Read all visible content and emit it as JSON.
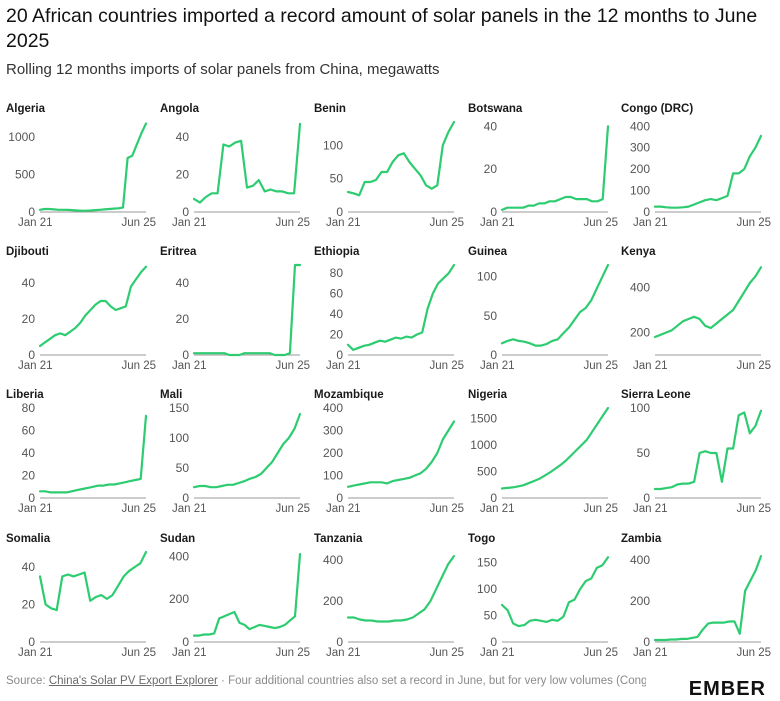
{
  "header": {
    "title": "20 African countries imported a record amount of solar panels in the 12 months to June 2025",
    "subtitle": "Rolling 12 months imports of solar panels from China, megawatts"
  },
  "footer": {
    "source_prefix": "Source: ",
    "source_link": "China's Solar PV Export Explorer",
    "note": " · Four additional countries also set a record in June, but for very low volumes (Congo, Equatorial Guinea, Eswatini, Saint Helena)"
  },
  "logo": "EMBER",
  "colors": {
    "line": "#2ecc71",
    "axis": "#999999",
    "text": "#333333"
  },
  "chart_data": [
    {
      "type": "line",
      "title": "Algeria",
      "xlabels": [
        "Jan 21",
        "Jun 25"
      ],
      "yticks": [
        0,
        500,
        1000
      ],
      "ylim": [
        0,
        1200
      ],
      "values": [
        30,
        40,
        40,
        35,
        30,
        30,
        28,
        25,
        20,
        18,
        18,
        20,
        25,
        30,
        35,
        40,
        45,
        50,
        60,
        720,
        750,
        900,
        1050,
        1180
      ]
    },
    {
      "type": "line",
      "title": "Angola",
      "xlabels": [
        "Jan 21",
        "Jun 25"
      ],
      "yticks": [
        0,
        20,
        40
      ],
      "ylim": [
        0,
        48
      ],
      "values": [
        7,
        5,
        8,
        10,
        10,
        36,
        35,
        37,
        38,
        13,
        14,
        17,
        11,
        12,
        11,
        11,
        10,
        10,
        47
      ]
    },
    {
      "type": "line",
      "title": "Benin",
      "xlabels": [
        "Jan 21",
        "Jun 25"
      ],
      "yticks": [
        0,
        50,
        100
      ],
      "ylim": [
        0,
        135
      ],
      "values": [
        30,
        28,
        25,
        45,
        45,
        48,
        60,
        60,
        75,
        85,
        88,
        75,
        65,
        55,
        40,
        35,
        40,
        100,
        120,
        135
      ]
    },
    {
      "type": "line",
      "title": "Botswana",
      "xlabels": [
        "Jan 21",
        "Jun 25"
      ],
      "yticks": [
        0,
        20,
        40
      ],
      "ylim": [
        0,
        42
      ],
      "values": [
        1,
        2,
        2,
        2,
        2,
        3,
        3,
        4,
        4,
        5,
        5,
        6,
        7,
        7,
        6,
        6,
        6,
        5,
        5,
        6,
        40
      ]
    },
    {
      "type": "line",
      "title": "Congo (DRC)",
      "xlabels": [
        "Jan 21",
        "Jun 25"
      ],
      "yticks": [
        0,
        100,
        200,
        300,
        400
      ],
      "ylim": [
        0,
        420
      ],
      "values": [
        25,
        25,
        22,
        20,
        20,
        22,
        25,
        35,
        45,
        55,
        60,
        55,
        65,
        75,
        180,
        180,
        200,
        260,
        300,
        355
      ]
    },
    {
      "type": "line",
      "title": "Djibouti",
      "xlabels": [
        "Jan 21",
        "Jun 25"
      ],
      "yticks": [
        0,
        20,
        40
      ],
      "ylim": [
        0,
        50
      ],
      "values": [
        5,
        7,
        9,
        11,
        12,
        11,
        13,
        15,
        18,
        22,
        25,
        28,
        30,
        30,
        27,
        25,
        26,
        27,
        38,
        42,
        46,
        49
      ]
    },
    {
      "type": "line",
      "title": "Eritrea",
      "xlabels": [
        "Jan 21",
        "Jun 25"
      ],
      "yticks": [
        0,
        20,
        40
      ],
      "ylim": [
        0,
        50
      ],
      "values": [
        1,
        1,
        1,
        1,
        1,
        1,
        1,
        0,
        0,
        0,
        1,
        1,
        1,
        1,
        1,
        1,
        0,
        0,
        0,
        1,
        50,
        50
      ]
    },
    {
      "type": "line",
      "title": "Ethiopia",
      "xlabels": [
        "Jan 21",
        "Jun 25"
      ],
      "yticks": [
        0,
        20,
        40,
        60,
        80
      ],
      "ylim": [
        0,
        88
      ],
      "values": [
        10,
        5,
        7,
        9,
        10,
        12,
        14,
        13,
        15,
        17,
        16,
        18,
        17,
        20,
        22,
        45,
        60,
        70,
        75,
        80,
        88
      ]
    },
    {
      "type": "line",
      "title": "Guinea",
      "xlabels": [
        "Jan 21",
        "Jun 25"
      ],
      "yticks": [
        0,
        50,
        100
      ],
      "ylim": [
        0,
        115
      ],
      "values": [
        15,
        18,
        20,
        18,
        17,
        15,
        12,
        12,
        14,
        18,
        20,
        28,
        35,
        45,
        55,
        60,
        70,
        85,
        100,
        115
      ]
    },
    {
      "type": "line",
      "title": "Kenya",
      "xlabels": [
        "Jan 21",
        "Jun 25"
      ],
      "yticks": [
        200,
        400
      ],
      "ylim": [
        100,
        500
      ],
      "values": [
        180,
        190,
        200,
        210,
        230,
        250,
        260,
        270,
        260,
        230,
        220,
        240,
        260,
        280,
        300,
        340,
        380,
        420,
        450,
        490
      ]
    },
    {
      "type": "line",
      "title": "Liberia",
      "xlabels": [
        "Jan 21",
        "Jun 25"
      ],
      "yticks": [
        0,
        20,
        40,
        60,
        80
      ],
      "ylim": [
        0,
        80
      ],
      "values": [
        6,
        6,
        5,
        5,
        5,
        5,
        6,
        7,
        8,
        9,
        10,
        11,
        11,
        12,
        12,
        13,
        14,
        15,
        16,
        17,
        73
      ]
    },
    {
      "type": "line",
      "title": "Mali",
      "xlabels": [
        "Jan 21",
        "Jun 25"
      ],
      "yticks": [
        0,
        50,
        100,
        150
      ],
      "ylim": [
        0,
        150
      ],
      "values": [
        18,
        20,
        20,
        18,
        18,
        20,
        22,
        22,
        25,
        28,
        32,
        35,
        40,
        50,
        60,
        75,
        90,
        100,
        115,
        140
      ]
    },
    {
      "type": "line",
      "title": "Mozambique",
      "xlabels": [
        "Jan 21",
        "Jun 25"
      ],
      "yticks": [
        0,
        100,
        200,
        300,
        400
      ],
      "ylim": [
        0,
        400
      ],
      "values": [
        50,
        55,
        60,
        65,
        70,
        70,
        70,
        65,
        75,
        80,
        85,
        90,
        100,
        110,
        130,
        160,
        200,
        260,
        300,
        340
      ]
    },
    {
      "type": "line",
      "title": "Nigeria",
      "xlabels": [
        "Jan 21",
        "Jun 25"
      ],
      "yticks": [
        0,
        500,
        1000,
        1500
      ],
      "ylim": [
        0,
        1700
      ],
      "values": [
        180,
        190,
        200,
        220,
        240,
        280,
        320,
        360,
        420,
        480,
        550,
        620,
        700,
        800,
        900,
        1000,
        1100,
        1250,
        1400,
        1550,
        1700
      ]
    },
    {
      "type": "line",
      "title": "Sierra Leone",
      "xlabels": [
        "Jan 21",
        "Jun 25"
      ],
      "yticks": [
        0,
        50,
        100
      ],
      "ylim": [
        0,
        100
      ],
      "values": [
        10,
        10,
        11,
        12,
        15,
        16,
        16,
        18,
        50,
        52,
        50,
        50,
        18,
        55,
        55,
        92,
        95,
        72,
        80,
        97
      ]
    },
    {
      "type": "line",
      "title": "Somalia",
      "xlabels": [
        "Jan 21",
        "Jun 25"
      ],
      "yticks": [
        0,
        20,
        40
      ],
      "ylim": [
        0,
        48
      ],
      "values": [
        35,
        20,
        18,
        17,
        35,
        36,
        35,
        36,
        37,
        22,
        24,
        25,
        23,
        25,
        30,
        35,
        38,
        40,
        42,
        48
      ]
    },
    {
      "type": "line",
      "title": "Sudan",
      "xlabels": [
        "Jan 21",
        "Jun 25"
      ],
      "yticks": [
        0,
        200,
        400
      ],
      "ylim": [
        0,
        420
      ],
      "values": [
        30,
        30,
        35,
        35,
        40,
        110,
        120,
        130,
        140,
        90,
        80,
        60,
        70,
        80,
        75,
        70,
        65,
        70,
        80,
        100,
        120,
        410
      ]
    },
    {
      "type": "line",
      "title": "Tanzania",
      "xlabels": [
        "Jan 21",
        "Jun 25"
      ],
      "yticks": [
        0,
        200,
        400
      ],
      "ylim": [
        0,
        440
      ],
      "values": [
        120,
        120,
        110,
        105,
        105,
        100,
        100,
        100,
        105,
        105,
        110,
        120,
        140,
        160,
        200,
        260,
        320,
        380,
        420
      ]
    },
    {
      "type": "line",
      "title": "Togo",
      "xlabels": [
        "Jan 21",
        "Jun 25"
      ],
      "yticks": [
        0,
        50,
        100,
        150
      ],
      "ylim": [
        0,
        170
      ],
      "values": [
        70,
        60,
        35,
        30,
        32,
        40,
        42,
        40,
        38,
        42,
        40,
        48,
        75,
        80,
        100,
        115,
        120,
        140,
        145,
        160
      ]
    },
    {
      "type": "line",
      "title": "Zambia",
      "xlabels": [
        "Jan 21",
        "Jun 25"
      ],
      "yticks": [
        0,
        200,
        400
      ],
      "ylim": [
        0,
        440
      ],
      "values": [
        10,
        10,
        10,
        12,
        12,
        15,
        15,
        20,
        25,
        60,
        90,
        95,
        95,
        95,
        100,
        100,
        40,
        250,
        300,
        350,
        420
      ]
    }
  ]
}
